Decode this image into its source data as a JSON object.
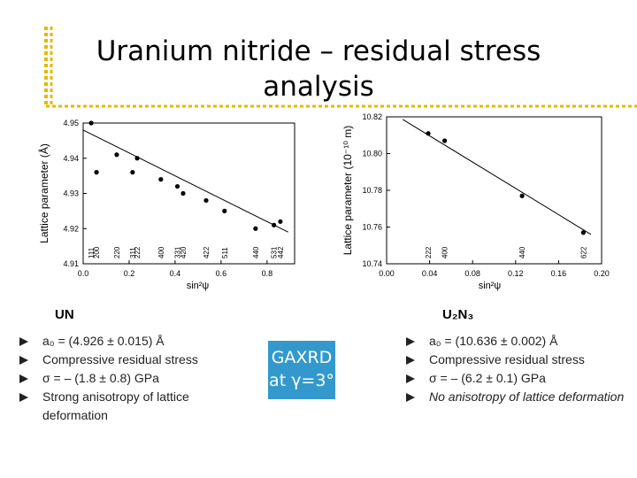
{
  "title": "Uranium nitride – residual stress analysis",
  "chart_data": [
    {
      "type": "scatter",
      "x_label": "sin²ψ",
      "y_label": "Lattice parameter (Å)",
      "x": [
        0.035,
        0.058,
        0.146,
        0.215,
        0.235,
        0.338,
        0.41,
        0.435,
        0.535,
        0.615,
        0.75,
        0.83,
        0.858
      ],
      "values": [
        4.95,
        4.936,
        4.941,
        4.936,
        4.94,
        4.934,
        4.932,
        4.93,
        4.928,
        4.925,
        4.92,
        4.921,
        4.922
      ],
      "fit": {
        "x": [
          0,
          0.892
        ],
        "y": [
          4.948,
          4.919
        ]
      },
      "hkl": [
        {
          "x": 0.035,
          "label": "111"
        },
        {
          "x": 0.058,
          "label": "200"
        },
        {
          "x": 0.146,
          "label": "220"
        },
        {
          "x": 0.215,
          "label": "311"
        },
        {
          "x": 0.235,
          "label": "222"
        },
        {
          "x": 0.338,
          "label": "400"
        },
        {
          "x": 0.41,
          "label": "331"
        },
        {
          "x": 0.435,
          "label": "420"
        },
        {
          "x": 0.535,
          "label": "422"
        },
        {
          "x": 0.615,
          "label": "511"
        },
        {
          "x": 0.75,
          "label": "440"
        },
        {
          "x": 0.83,
          "label": "531"
        },
        {
          "x": 0.858,
          "label": "442"
        }
      ],
      "color": "#000000",
      "xlim": [
        0,
        0.92
      ],
      "ylim": [
        4.91,
        4.95
      ],
      "xticks": [
        {
          "value": 0,
          "label": "0.0"
        },
        0.2,
        0.4,
        0.6,
        0.8
      ],
      "yticks": [
        4.91,
        4.92,
        4.93,
        4.94,
        4.95
      ]
    },
    {
      "type": "scatter",
      "x_label": "sin²ψ",
      "y_label": "Lattice parameter (10⁻¹⁰ m)",
      "x": [
        0.0387,
        0.054,
        0.126,
        0.183
      ],
      "values": [
        10.811,
        10.807,
        10.777,
        10.757
      ],
      "fit": {
        "x": [
          0.015,
          0.19
        ],
        "y": [
          10.8186,
          10.756
        ]
      },
      "hkl": [
        {
          "x": 0.0387,
          "label": "222"
        },
        {
          "x": 0.054,
          "label": "400"
        },
        {
          "x": 0.126,
          "label": "440"
        },
        {
          "x": 0.183,
          "label": "622"
        }
      ],
      "color": "#000000",
      "xlim": [
        0,
        0.2
      ],
      "ylim": [
        10.74,
        10.82
      ],
      "xticks": [
        {
          "value": 0,
          "label": "0.00"
        },
        0.04,
        0.08,
        0.12,
        0.16,
        {
          "value": 0.2,
          "label": "0.20"
        }
      ],
      "yticks": [
        10.74,
        10.76,
        10.78,
        {
          "value": 10.8,
          "label": "10.80"
        },
        10.82
      ]
    }
  ],
  "left": {
    "heading": "UN",
    "bullets": [
      "a₀ = (4.926 ± 0.015) Å",
      "Compressive residual stress",
      "σ = – (1.8 ± 0.8) GPa",
      "Strong anisotropy of lattice deformation"
    ]
  },
  "right": {
    "heading": "U₂N₃",
    "bullets": [
      "a₀ = (10.636 ± 0.002) Å",
      "Compressive residual stress",
      "σ = – (6.2 ± 0.1) GPa",
      "No anisotropy of lattice deformation"
    ]
  },
  "method": {
    "line1": "GAXRD",
    "line2": "at γ=3°"
  }
}
